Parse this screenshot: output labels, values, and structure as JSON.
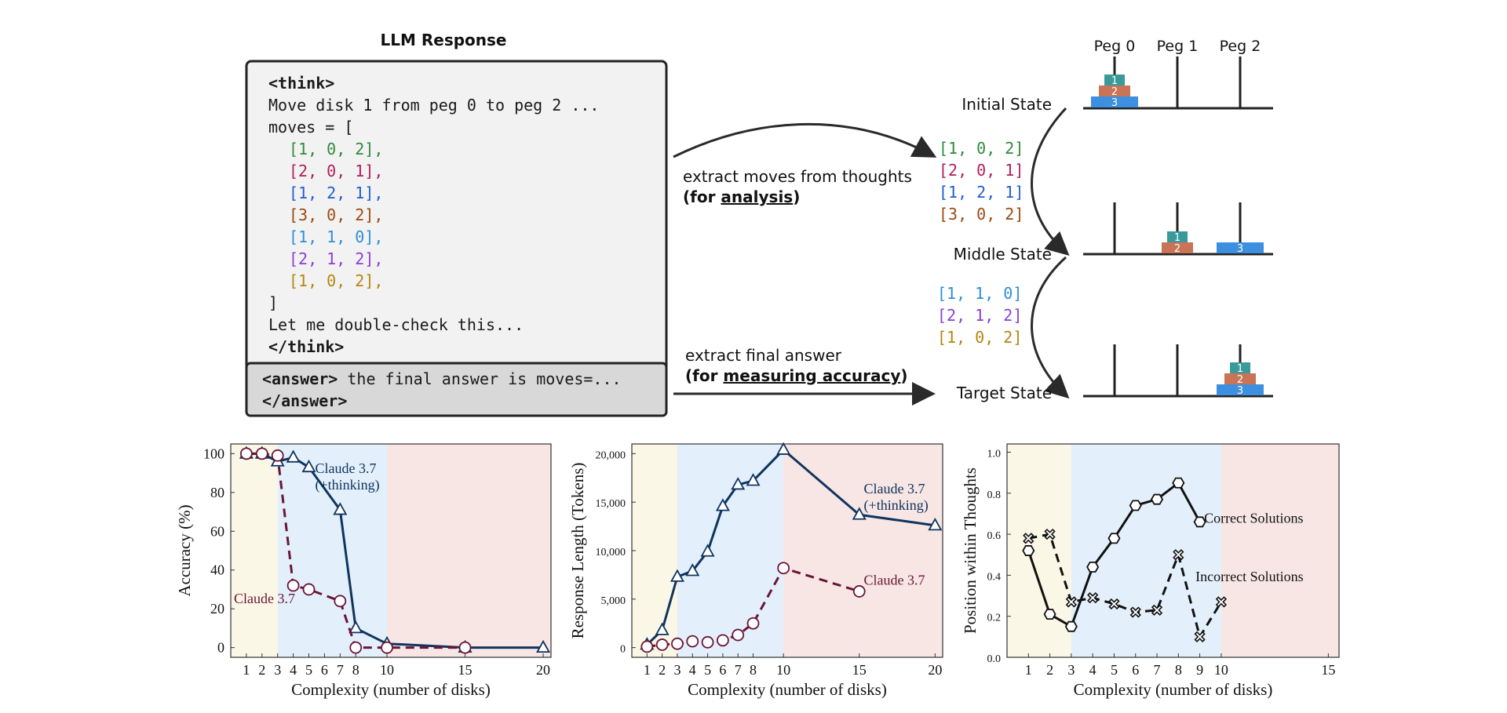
{
  "llm_panel": {
    "title": "LLM Response",
    "think_open": "<think>",
    "move_text": "Move disk 1 from peg 0 to peg 2 ...",
    "moves_open": "moves = [",
    "moves": [
      {
        "text": "[1, 0, 2],",
        "color": "#2e8b3d"
      },
      {
        "text": "[2, 0, 1],",
        "color": "#b0205a"
      },
      {
        "text": "[1, 2, 1],",
        "color": "#1f5fd0"
      },
      {
        "text": "[3, 0, 2],",
        "color": "#9a4a10"
      },
      {
        "text": "[1, 1, 0],",
        "color": "#2d8fd8"
      },
      {
        "text": "[2, 1, 2],",
        "color": "#8a3fd6"
      },
      {
        "text": "[1, 0, 2],",
        "color": "#b5860f"
      }
    ],
    "moves_close": "]",
    "double_check": "Let me double-check this...",
    "think_close": "</think>",
    "answer_open": "<answer>",
    "answer_text": " the final answer is moves=...",
    "answer_close": "</answer>"
  },
  "flow": {
    "extract_moves_line1": "extract moves  from thoughts",
    "extract_moves_paren_open": "(for ",
    "extract_moves_underlined": "analysis",
    "extract_moves_paren_close": ")",
    "extract_final_line1": "extract final answer",
    "extract_final_paren_open": "(for ",
    "extract_final_underlined": "measuring accuracy",
    "extract_final_paren_close": ")",
    "moves_group1": [
      {
        "text": "[1, 0, 2]",
        "color": "#2e8b3d"
      },
      {
        "text": "[2, 0, 1]",
        "color": "#b0205a"
      },
      {
        "text": "[1, 2, 1]",
        "color": "#1f5fd0"
      },
      {
        "text": "[3, 0, 2]",
        "color": "#9a4a10"
      }
    ],
    "moves_group2": [
      {
        "text": "[1, 1, 0]",
        "color": "#2d8fd8"
      },
      {
        "text": "[2, 1, 2]",
        "color": "#8a3fd6"
      },
      {
        "text": "[1, 0, 2]",
        "color": "#b5860f"
      }
    ]
  },
  "hanoi": {
    "peg_labels": [
      "Peg 0",
      "Peg 1",
      "Peg 2"
    ],
    "states": [
      {
        "label": "Initial State",
        "pegs": [
          [
            3,
            2,
            1
          ],
          [],
          []
        ]
      },
      {
        "label": "Middle State",
        "pegs": [
          [],
          [
            2,
            1
          ],
          [
            3
          ]
        ]
      },
      {
        "label": "Target State",
        "pegs": [
          [],
          [],
          [
            3,
            2,
            1
          ]
        ]
      }
    ],
    "disk_colors": {
      "1": "#3a9a9a",
      "2": "#c97457",
      "3": "#3d8fe0"
    },
    "disk_labels": {
      "1": "1",
      "2": "2",
      "3": "3"
    }
  },
  "chart_data": [
    {
      "type": "line",
      "xlabel": "Complexity (number of disks)",
      "ylabel": "Accuracy (%)",
      "xlim": [
        0,
        20.5
      ],
      "ylim": [
        -5,
        105
      ],
      "xticks": [
        1,
        2,
        3,
        4,
        5,
        6,
        7,
        8,
        10,
        15,
        20
      ],
      "yticks": [
        0,
        20,
        40,
        60,
        80,
        100
      ],
      "regions": [
        {
          "from": 0,
          "to": 3,
          "color": "#fbf7e6"
        },
        {
          "from": 3,
          "to": 10,
          "color": "#e3f0fb"
        },
        {
          "from": 10,
          "to": 20.5,
          "color": "#f7e6e3"
        }
      ],
      "series": [
        {
          "name": "Claude 3.7 (+thinking)",
          "label_lines": [
            "Claude 3.7",
            "(+thinking)"
          ],
          "label_pos": [
            5.4,
            90
          ],
          "color": "#0f3460",
          "dash": false,
          "marker": "triangle",
          "x": [
            1,
            2,
            3,
            4,
            5,
            7,
            8,
            10,
            15,
            20
          ],
          "y": [
            100,
            100,
            96,
            98,
            93,
            71,
            10,
            2,
            0,
            0
          ]
        },
        {
          "name": "Claude 3.7",
          "label_lines": [
            "Claude 3.7"
          ],
          "label_pos": [
            0.2,
            23
          ],
          "color": "#6a1537",
          "dash": true,
          "marker": "circle",
          "x": [
            1,
            2,
            3,
            4,
            5,
            7,
            8,
            10,
            15
          ],
          "y": [
            100,
            100,
            99,
            32,
            30,
            24,
            0,
            0,
            0
          ]
        }
      ]
    },
    {
      "type": "line",
      "xlabel": "Complexity (number of disks)",
      "ylabel": "Response Length (Tokens)",
      "xlim": [
        0,
        20.5
      ],
      "ylim": [
        -1000,
        21000
      ],
      "xticks": [
        1,
        2,
        3,
        4,
        5,
        6,
        7,
        8,
        10,
        15,
        20
      ],
      "yticks": [
        0,
        5000,
        10000,
        15000,
        20000
      ],
      "ytick_labels": [
        "0",
        "5,000",
        "10,000",
        "15,000",
        "20,000"
      ],
      "regions": [
        {
          "from": 0,
          "to": 3,
          "color": "#fbf7e6"
        },
        {
          "from": 3,
          "to": 10,
          "color": "#e3f0fb"
        },
        {
          "from": 10,
          "to": 20.5,
          "color": "#f7e6e3"
        }
      ],
      "series": [
        {
          "name": "Claude 3.7 (+thinking)",
          "label_lines": [
            "Claude 3.7",
            "(+thinking)"
          ],
          "label_pos": [
            15.3,
            15900
          ],
          "color": "#0f3460",
          "dash": false,
          "marker": "triangle",
          "x": [
            1,
            2,
            3,
            4,
            5,
            6,
            7,
            8,
            10,
            15,
            20
          ],
          "y": [
            300,
            1800,
            7300,
            7900,
            9900,
            14600,
            16800,
            17200,
            20400,
            13700,
            12600
          ]
        },
        {
          "name": "Claude 3.7",
          "label_lines": [
            "Claude 3.7"
          ],
          "label_pos": [
            15.3,
            6500
          ],
          "color": "#6a1537",
          "dash": true,
          "marker": "circle",
          "x": [
            1,
            2,
            3,
            4,
            5,
            6,
            7,
            8,
            10,
            15
          ],
          "y": [
            100,
            300,
            400,
            650,
            550,
            750,
            1300,
            2500,
            8200,
            5800
          ]
        }
      ]
    },
    {
      "type": "line",
      "xlabel": "Complexity (number of disks)",
      "ylabel": "Position within Thoughts",
      "xlim": [
        0,
        15.5
      ],
      "ylim": [
        0,
        1.04
      ],
      "xticks": [
        1,
        2,
        3,
        4,
        5,
        6,
        7,
        8,
        9,
        10,
        15
      ],
      "yticks": [
        0,
        0.2,
        0.4,
        0.6,
        0.8,
        1.0
      ],
      "ytick_labels": [
        "0.0",
        "0.2",
        "0.4",
        "0.6",
        "0.8",
        "1.0"
      ],
      "regions": [
        {
          "from": 0,
          "to": 3,
          "color": "#fbf7e6"
        },
        {
          "from": 3,
          "to": 10,
          "color": "#e3f0fb"
        },
        {
          "from": 10,
          "to": 15.5,
          "color": "#f7e6e3"
        }
      ],
      "series": [
        {
          "name": "Correct Solutions",
          "label_lines": [
            "Correct Solutions"
          ],
          "label_pos": [
            9.2,
            0.655
          ],
          "color": "#111111",
          "dash": false,
          "marker": "hexagon",
          "x": [
            1,
            2,
            3,
            4,
            5,
            6,
            7,
            8,
            9
          ],
          "y": [
            0.52,
            0.21,
            0.15,
            0.44,
            0.58,
            0.74,
            0.77,
            0.85,
            0.66
          ]
        },
        {
          "name": "Incorrect Solutions",
          "label_lines": [
            "Incorrect Solutions"
          ],
          "label_pos": [
            8.8,
            0.37
          ],
          "color": "#111111",
          "dash": true,
          "marker": "x",
          "x": [
            1,
            2,
            3,
            4,
            5,
            6,
            7,
            8,
            9,
            10
          ],
          "y": [
            0.58,
            0.6,
            0.27,
            0.29,
            0.26,
            0.22,
            0.23,
            0.5,
            0.1,
            0.27
          ]
        }
      ]
    }
  ]
}
